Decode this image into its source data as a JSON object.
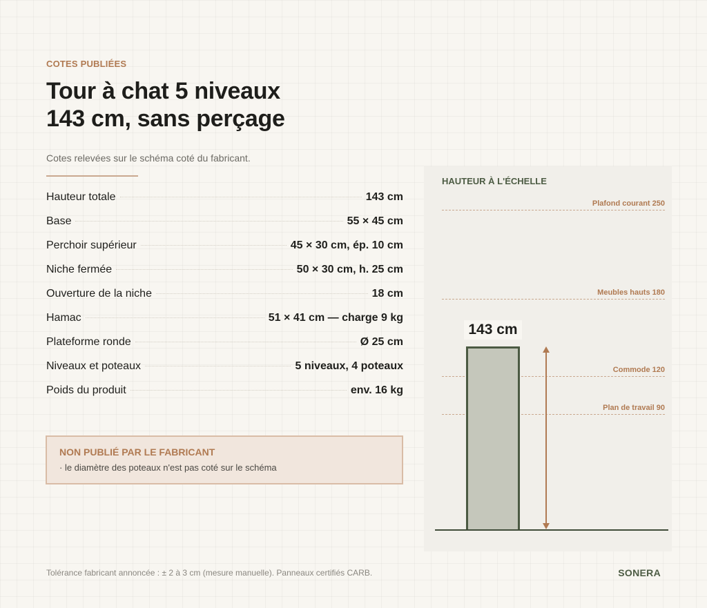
{
  "eyebrow": "COTES PUBLIÉES",
  "title": {
    "line1": "Tour à chat 5 niveaux",
    "line2": "143 cm, sans perçage"
  },
  "subtitle": "Cotes relevées sur le schéma coté du fabricant.",
  "specs": [
    {
      "label": "Hauteur totale",
      "value": "143 cm"
    },
    {
      "label": "Base",
      "value": "55 × 45 cm"
    },
    {
      "label": "Perchoir supérieur",
      "value": "45 × 30 cm, ép. 10 cm"
    },
    {
      "label": "Niche fermée",
      "value": "50 × 30 cm, h. 25 cm"
    },
    {
      "label": "Ouverture de la niche",
      "value": "18 cm"
    },
    {
      "label": "Hamac",
      "value": "51 × 41 cm — charge 9 kg"
    },
    {
      "label": "Plateforme ronde",
      "value": "Ø 25 cm"
    },
    {
      "label": "Niveaux et poteaux",
      "value": "5 niveaux, 4 poteaux"
    },
    {
      "label": "Poids du produit",
      "value": "env. 16 kg"
    }
  ],
  "notice": {
    "title": "NON PUBLIÉ PAR LE FABRICANT",
    "text": "· le diamètre des poteaux n'est pas coté sur le schéma"
  },
  "scale_panel": {
    "title": "HAUTEUR À L'ÉCHELLE",
    "product_height_cm": 143,
    "product_label": "143 cm",
    "references": [
      {
        "label": "Plafond courant 250",
        "height_cm": 250
      },
      {
        "label": "Meubles hauts 180",
        "height_cm": 180
      },
      {
        "label": "Commode 120",
        "height_cm": 120
      },
      {
        "label": "Plan de travail 90",
        "height_cm": 90
      }
    ],
    "colors": {
      "accent": "#b07a52",
      "product_fill": "#c5c7bb",
      "product_stroke": "#4b5a42"
    }
  },
  "footer": {
    "note": "Tolérance fabricant annoncée : ± 2 à 3 cm (mesure manuelle). Panneaux certifiés CARB.",
    "brand": "SONERA"
  }
}
